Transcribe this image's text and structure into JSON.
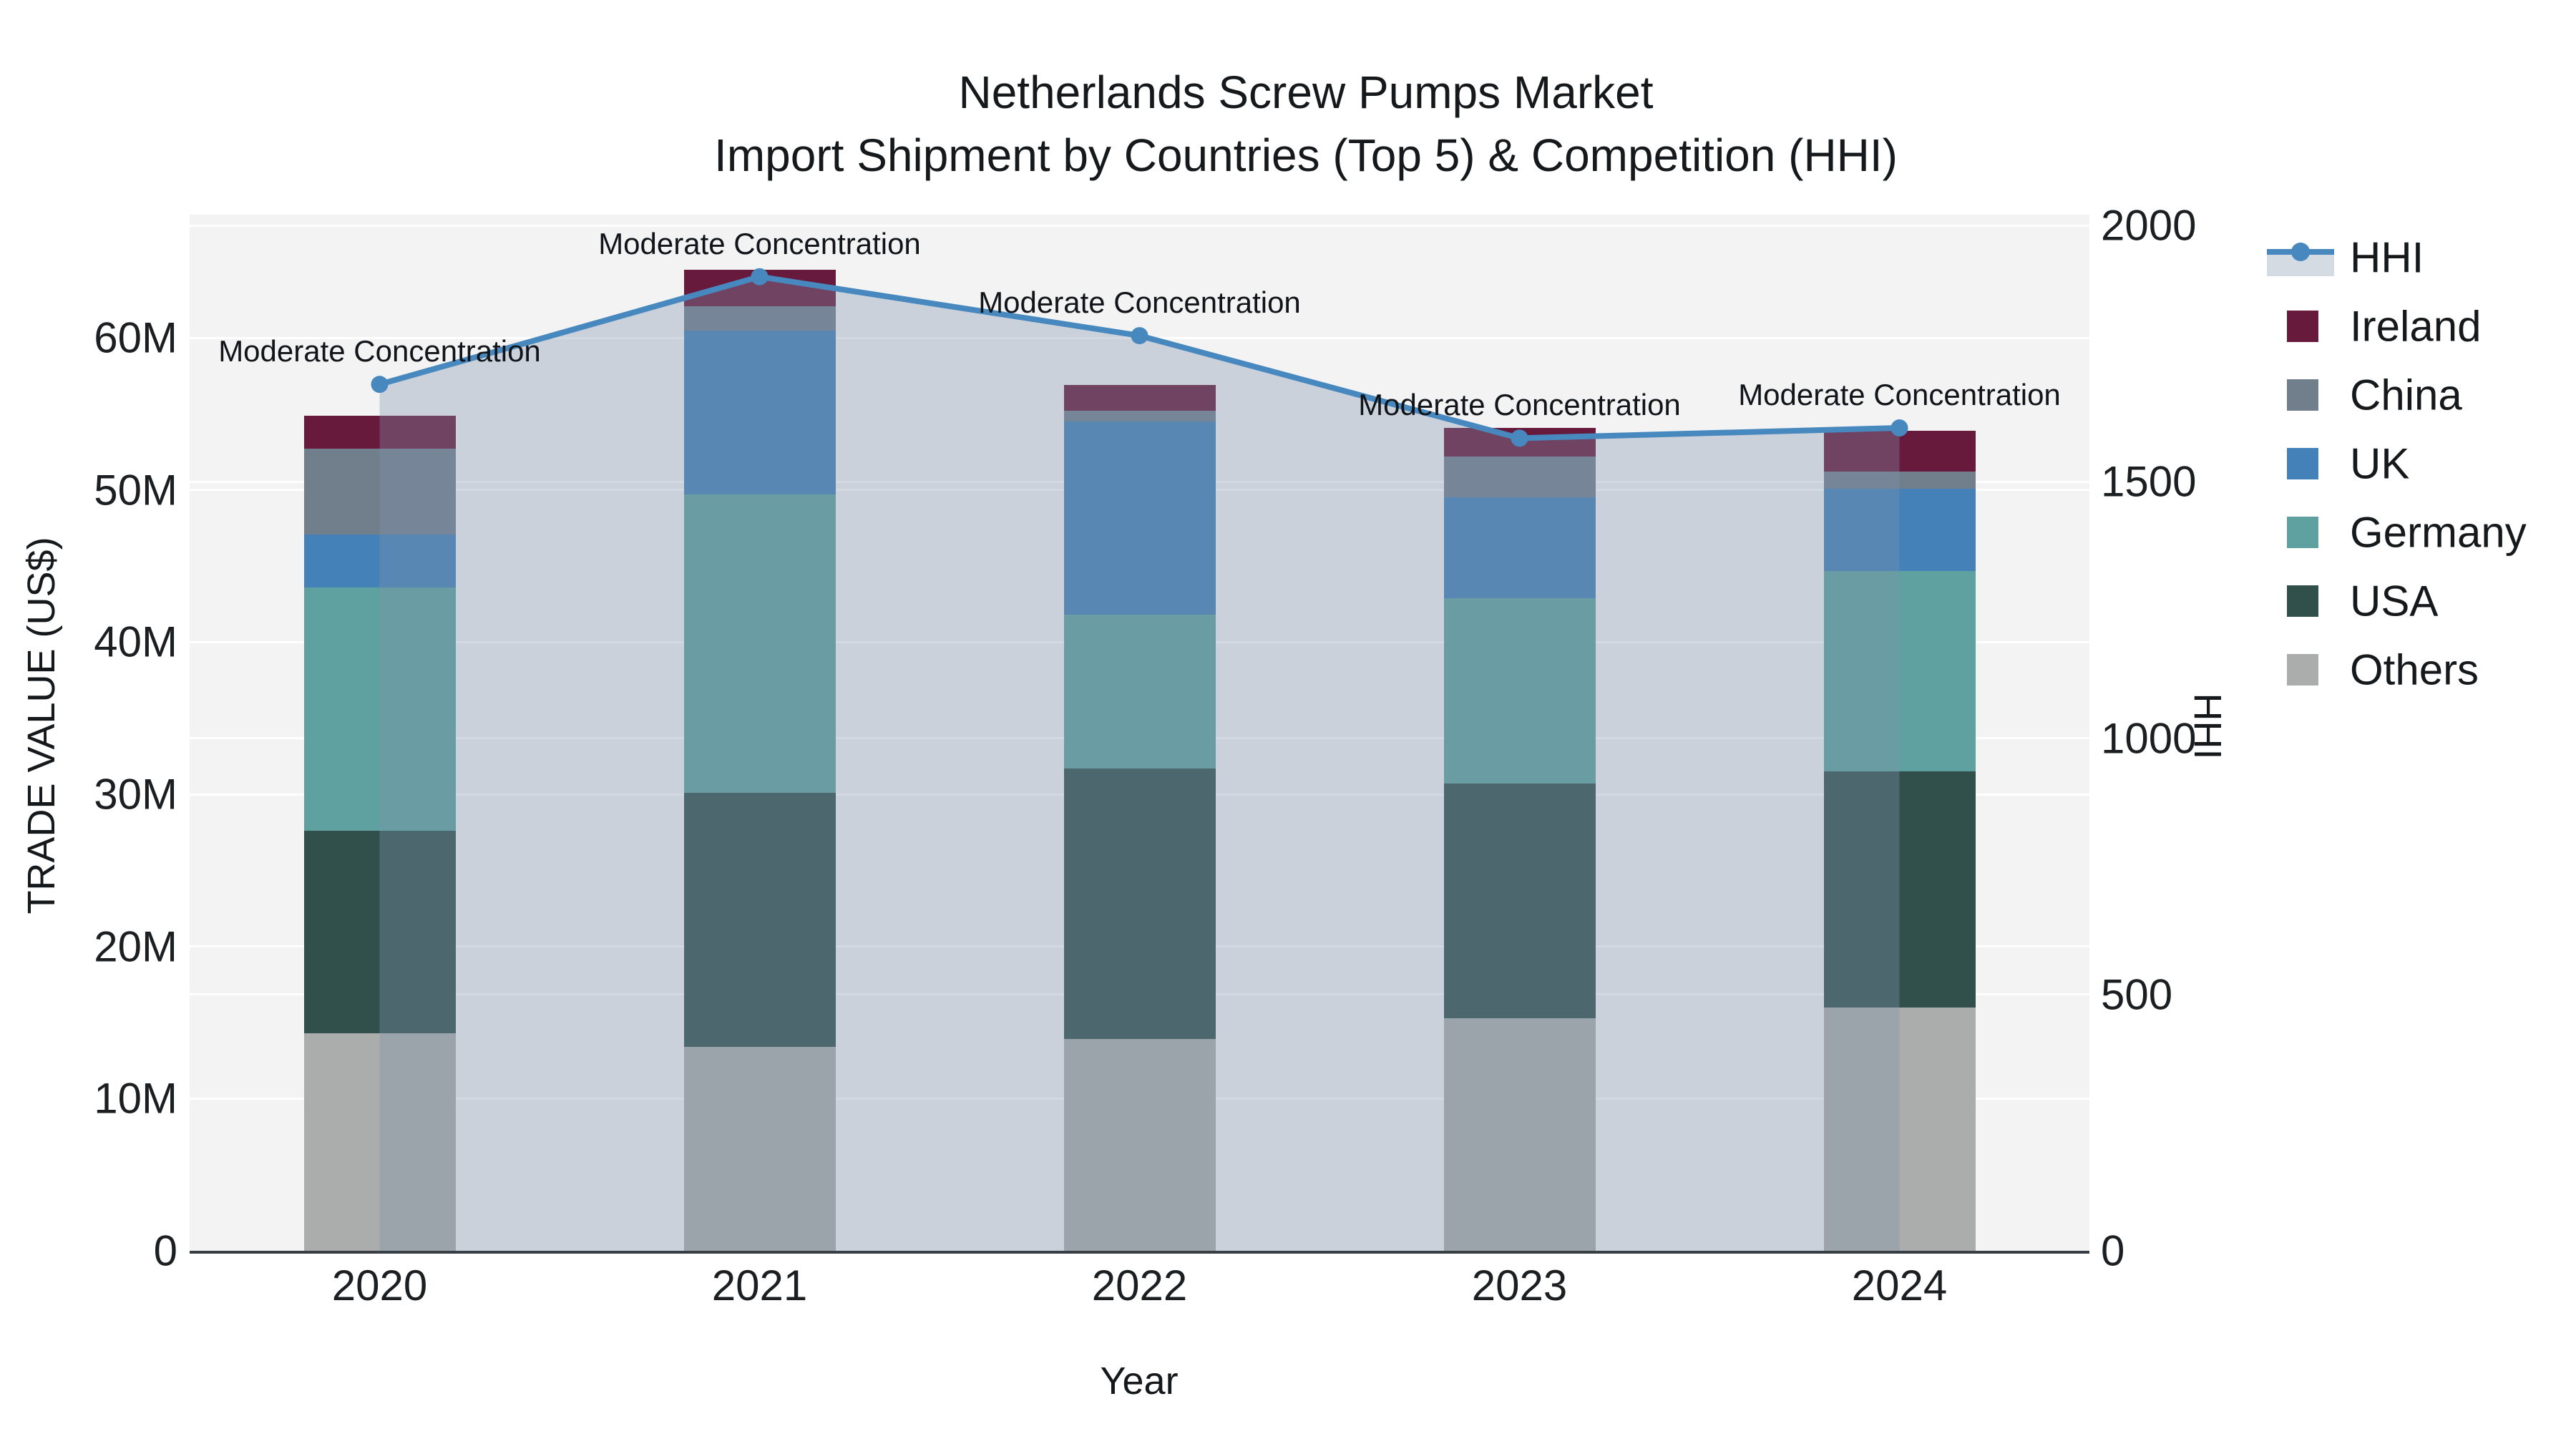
{
  "title": {
    "line1": "Netherlands Screw Pumps Market",
    "line2": "Import Shipment by Countries (Top 5) & Competition (HHI)"
  },
  "axes": {
    "left": {
      "title": "TRADE VALUE (US$)",
      "tick_labels": [
        "0",
        "10M",
        "20M",
        "30M",
        "40M",
        "50M",
        "60M"
      ],
      "tick_values_m": [
        0,
        10,
        20,
        30,
        40,
        50,
        60
      ],
      "max_m": 68.1
    },
    "right": {
      "title": "HHI",
      "tick_labels": [
        "0",
        "500",
        "1000",
        "1500",
        "2000"
      ],
      "tick_values": [
        0,
        500,
        1000,
        1500,
        2000
      ],
      "max": 2021
    },
    "x": {
      "title": "Year",
      "categories": [
        "2020",
        "2021",
        "2022",
        "2023",
        "2024"
      ]
    }
  },
  "legend": {
    "order": [
      "HHI",
      "Ireland",
      "China",
      "UK",
      "Germany",
      "USA",
      "Others"
    ]
  },
  "colors": {
    "plot_bg": "#f3f3f4",
    "gridline": "#ffffff",
    "axis_line": "#373f45",
    "text": "#15191c",
    "hhi_line": "#4788bf",
    "hhi_fill": "rgba(130,146,172,0.35)",
    "hhi_fill_over_white": "#d5dbe3",
    "Ireland": "#671a3c",
    "China": "#717e8c",
    "UK": "#4381b8",
    "Germany": "#5fa1a0",
    "USA": "#31504c",
    "Others": "#aaadab"
  },
  "chart_data": {
    "type": "combo: stacked-bar (left axis) + line with area fill (right axis)",
    "categories": [
      "2020",
      "2021",
      "2022",
      "2023",
      "2024"
    ],
    "bar_unit": "US$ millions",
    "bar_stack_order_bottom_to_top": [
      "Others",
      "USA",
      "Germany",
      "UK",
      "China",
      "Ireland"
    ],
    "series": [
      {
        "name": "Others",
        "type": "bar",
        "color": "#aaadab",
        "values": [
          14.3,
          13.4,
          13.9,
          15.3,
          16.0
        ]
      },
      {
        "name": "USA",
        "type": "bar",
        "color": "#31504c",
        "values": [
          13.3,
          16.7,
          17.8,
          15.4,
          15.5
        ]
      },
      {
        "name": "Germany",
        "type": "bar",
        "color": "#5fa1a0",
        "values": [
          16.0,
          19.6,
          10.1,
          12.2,
          13.2
        ]
      },
      {
        "name": "UK",
        "type": "bar",
        "color": "#4381b8",
        "values": [
          3.5,
          10.8,
          12.7,
          6.6,
          5.4
        ]
      },
      {
        "name": "China",
        "type": "bar",
        "color": "#717e8c",
        "values": [
          5.6,
          1.6,
          0.7,
          2.7,
          1.1
        ]
      },
      {
        "name": "Ireland",
        "type": "bar",
        "color": "#671a3c",
        "values": [
          2.2,
          2.4,
          1.7,
          1.9,
          2.7
        ]
      }
    ],
    "bar_totals_m": [
      54.9,
      64.5,
      56.9,
      54.1,
      53.9
    ],
    "line": {
      "name": "HHI",
      "axis": "right",
      "color": "#4788bf",
      "fill": "rgba(130,146,172,0.35)",
      "values": [
        1690,
        1900,
        1785,
        1585,
        1605
      ]
    },
    "annotations": [
      "Moderate Concentration",
      "Moderate Concentration",
      "Moderate Concentration",
      "Moderate Concentration",
      "Moderate Concentration"
    ],
    "xlabel": "Year",
    "ylabel_left": "TRADE VALUE (US$)",
    "ylabel_right": "HHI",
    "ylim_left_m": [
      0,
      68.1
    ],
    "ylim_right": [
      0,
      2021
    ],
    "grid": true,
    "legend_position": "right"
  }
}
